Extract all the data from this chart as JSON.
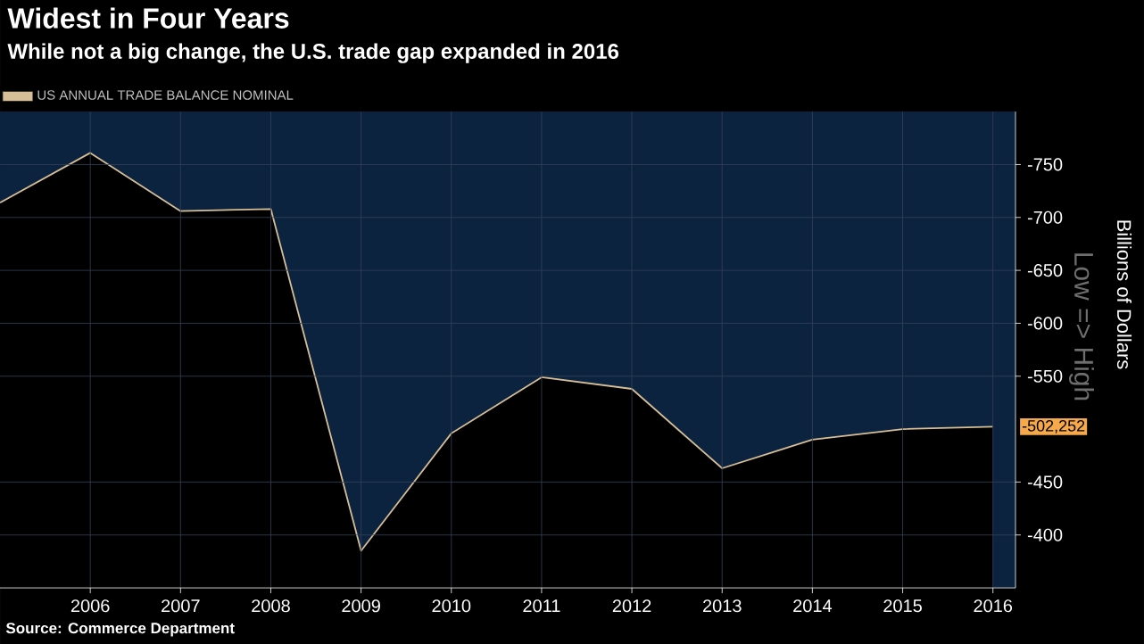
{
  "chart_data": {
    "type": "area",
    "title": "Widest in Four Years",
    "subtitle": "While not a big change, the U.S. trade gap expanded in 2016",
    "ylabel": "Billions of Dollars",
    "x": [
      2005,
      2006,
      2007,
      2008,
      2009,
      2010,
      2011,
      2012,
      2013,
      2014,
      2015,
      2016
    ],
    "series": [
      {
        "name": "US ANNUAL TRADE BALANCE NOMINAL",
        "color": "#d6be96",
        "values": [
          -714,
          -761,
          -706,
          -708,
          -385,
          -496,
          -549,
          -538,
          -463,
          -490,
          -500,
          -502.252
        ]
      }
    ],
    "xlim": [
      2005,
      2016.25
    ],
    "xticks": [
      2006,
      2007,
      2008,
      2009,
      2010,
      2011,
      2012,
      2013,
      2014,
      2015,
      2016
    ],
    "ylim": [
      -350,
      -800
    ],
    "yticks": [
      -400,
      -450,
      -550,
      -600,
      -650,
      -700,
      -750
    ],
    "grid": true,
    "legend": "top left",
    "annotations": [
      {
        "text": "-502,252",
        "x": 2016,
        "y": -502.252
      },
      "Low => High",
      "Source: Commerce Department"
    ]
  }
}
